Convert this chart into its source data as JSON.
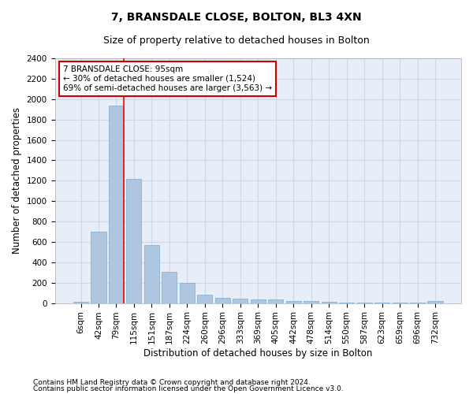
{
  "title1": "7, BRANSDALE CLOSE, BOLTON, BL3 4XN",
  "title2": "Size of property relative to detached houses in Bolton",
  "xlabel": "Distribution of detached houses by size in Bolton",
  "ylabel": "Number of detached properties",
  "categories": [
    "6sqm",
    "42sqm",
    "79sqm",
    "115sqm",
    "151sqm",
    "187sqm",
    "224sqm",
    "260sqm",
    "296sqm",
    "333sqm",
    "369sqm",
    "405sqm",
    "442sqm",
    "478sqm",
    "514sqm",
    "550sqm",
    "587sqm",
    "623sqm",
    "659sqm",
    "696sqm",
    "732sqm"
  ],
  "values": [
    15,
    700,
    1940,
    1220,
    570,
    305,
    200,
    80,
    48,
    40,
    35,
    32,
    20,
    20,
    15,
    8,
    2,
    2,
    2,
    2,
    20
  ],
  "bar_color": "#aec6e0",
  "bar_edge_color": "#7aaace",
  "red_line_x": 2.42,
  "annotation_text": "7 BRANSDALE CLOSE: 95sqm\n← 30% of detached houses are smaller (1,524)\n69% of semi-detached houses are larger (3,563) →",
  "annotation_box_facecolor": "#ffffff",
  "annotation_box_edgecolor": "#cc0000",
  "ylim": [
    0,
    2400
  ],
  "yticks": [
    0,
    200,
    400,
    600,
    800,
    1000,
    1200,
    1400,
    1600,
    1800,
    2000,
    2200,
    2400
  ],
  "grid_color": "#ced8e8",
  "background_color": "#e8eef8",
  "footer1": "Contains HM Land Registry data © Crown copyright and database right 2024.",
  "footer2": "Contains public sector information licensed under the Open Government Licence v3.0.",
  "title1_fontsize": 10,
  "title2_fontsize": 9,
  "xlabel_fontsize": 8.5,
  "ylabel_fontsize": 8.5,
  "tick_fontsize": 7.5,
  "annotation_fontsize": 7.5,
  "footer_fontsize": 6.5
}
